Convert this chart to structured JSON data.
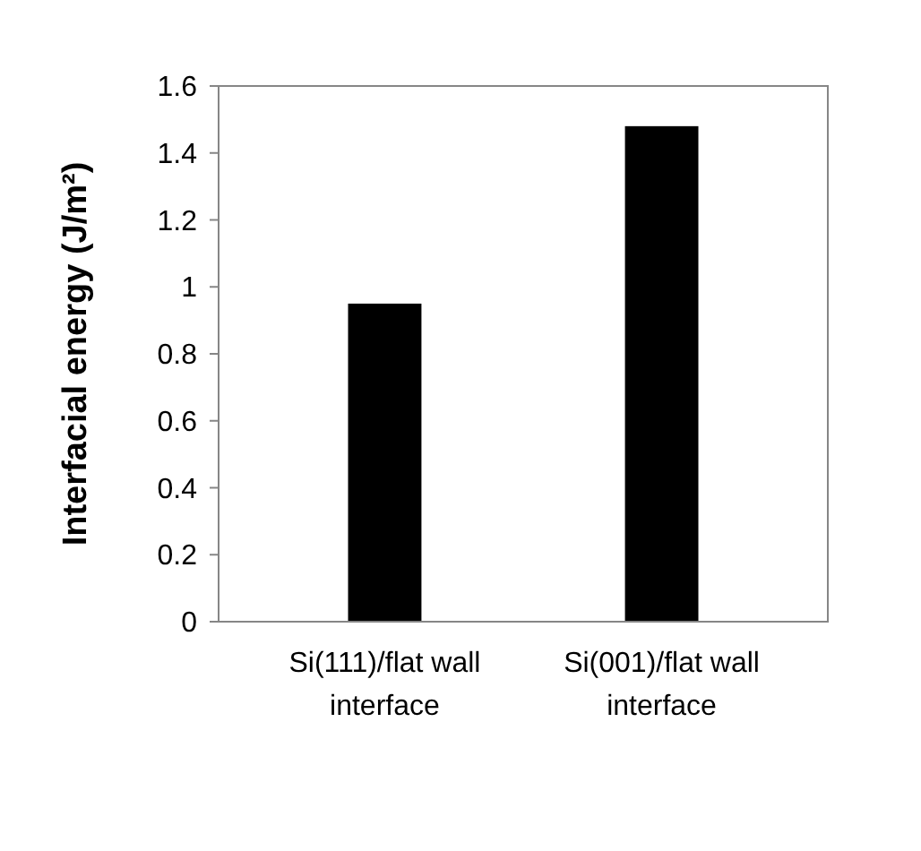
{
  "chart_data": {
    "type": "bar",
    "ylabel": "Interfacial energy (J/m²)",
    "categories": [
      "Si(111)/flat wall interface",
      "Si(001)/flat wall interface"
    ],
    "values": [
      0.95,
      1.48
    ],
    "color": "#000000",
    "ylim": [
      0,
      1.6
    ],
    "yticks": [
      0,
      0.2,
      0.4,
      0.6,
      0.8,
      1,
      1.2,
      1.4,
      1.6
    ],
    "grid": false
  }
}
